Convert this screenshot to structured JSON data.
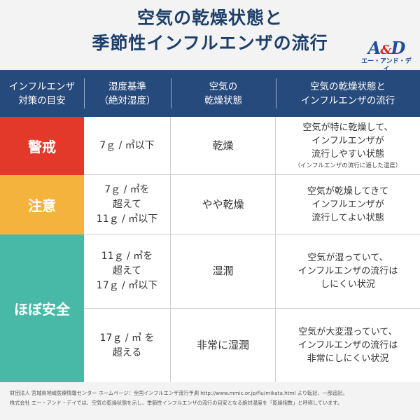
{
  "title": {
    "line1": "空気の乾燥状態と",
    "line2": "季節性インフルエンザの流行"
  },
  "logo": {
    "mark_a": "A",
    "mark_amp": "&",
    "mark_d": "D",
    "sub": "エー・アンド・デイ"
  },
  "colors": {
    "header_bg": "#274a7c",
    "warning": "#e3392b",
    "caution": "#f3b33d",
    "safe": "#48b9a6"
  },
  "header": {
    "col1": [
      "インフルエンザ",
      "対策の目安"
    ],
    "col2": [
      "湿度基準",
      "（絶対湿度）"
    ],
    "col3": [
      "空気の",
      "乾燥状態"
    ],
    "col4": [
      "空気の乾燥状態と",
      "インフルエンザの流行"
    ]
  },
  "bands": {
    "warning": "警戒",
    "caution": "注意",
    "safe": "ほぼ安全"
  },
  "rows": [
    {
      "humidity": [
        "7ｇ / ㎥以下"
      ],
      "state": "乾燥",
      "flu": [
        "空気が特に乾燥して、",
        "インフルエンザが",
        "流行しやすい状態"
      ],
      "note": "（インフルエンザの流行に適した湿度）"
    },
    {
      "humidity": [
        "7ｇ / ㎥を",
        "超えて",
        "11ｇ / ㎥以下"
      ],
      "state": "やや乾燥",
      "flu": [
        "空気が乾燥してきて",
        "インフルエンザが",
        "流行してよい状態"
      ]
    },
    {
      "humidity": [
        "11ｇ / ㎥を",
        "超えて",
        "17ｇ / ㎥以下"
      ],
      "state": "湿潤",
      "flu": [
        "空気が湿っていて、",
        "インフルエンザの流行は",
        "しにくい状況"
      ]
    },
    {
      "humidity": [
        "17ｇ / ㎥ を",
        "超える"
      ],
      "state": "非常に湿潤",
      "flu": [
        "空気が大変湿っていて、",
        "インフルエンザの流行は",
        "非常にしにくい状況"
      ]
    }
  ],
  "footer": {
    "line1": "財団法人 宮城県地域医療情報センター ホームページ：全国インフルエンザ流行予測 http://www.mmic.or.jp/flu/mikata.html より転記、一部追記。",
    "line2": "株式会社 エー・アンド・デイでは、空気の乾燥状態を示し、季節性インフルエンザの流行の目安となる絶対湿度を「乾燥指数」と呼称しています。"
  }
}
